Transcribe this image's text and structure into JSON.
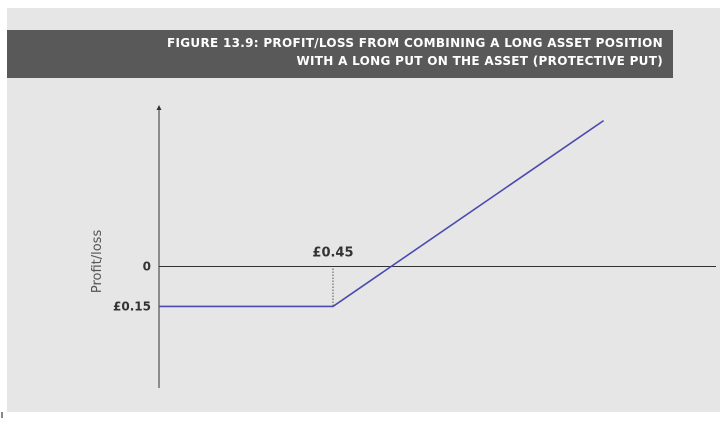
{
  "figure_title": {
    "line1": "FIGURE 13.9: PROFIT/LOSS FROM COMBINING A LONG ASSET POSITION",
    "line2": "WITH A LONG PUT ON THE ASSET (PROTECTIVE PUT)"
  },
  "chart_data": {
    "type": "line",
    "title": "FIGURE 13.9: PROFIT/LOSS FROM COMBINING A LONG ASSET POSITION WITH A LONG PUT ON THE ASSET (PROTECTIVE PUT)",
    "ylabel": "Profit/loss",
    "xlabel": "",
    "y_tick_labels": [
      {
        "value": 0,
        "label": "0"
      },
      {
        "value": -0.15,
        "label": "£0.15"
      }
    ],
    "annotations": [
      {
        "text": "£0.45",
        "x": 0.45,
        "description": "strike price marker"
      }
    ],
    "series": [
      {
        "values": [
          {
            "x": 0,
            "y": -0.15
          },
          {
            "x": 0.45,
            "y": -0.15
          },
          {
            "x": 1.15,
            "y": 0.55
          }
        ]
      }
    ],
    "xlim": [
      0,
      1.42
    ],
    "ylim": [
      -0.45,
      0.62
    ],
    "colors": {
      "line": "#4a4ab0",
      "axis": "#333333",
      "background": "#e6e6e6",
      "title_bar": "#595959"
    },
    "grid": false
  }
}
